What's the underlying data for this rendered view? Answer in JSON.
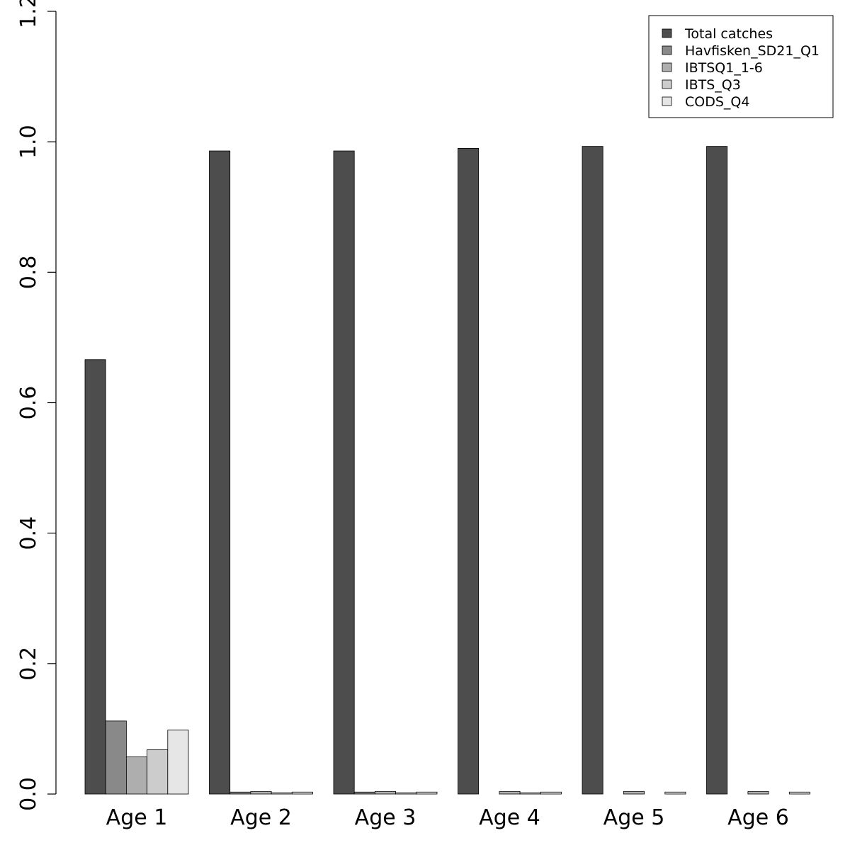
{
  "chart_data": {
    "type": "bar",
    "title": "",
    "xlabel": "",
    "ylabel": "",
    "categories": [
      "Age 1",
      "Age 2",
      "Age 3",
      "Age 4",
      "Age 5",
      "Age 6"
    ],
    "ylim": [
      0,
      1.2
    ],
    "yticks": [
      "0.0",
      "0.2",
      "0.4",
      "0.6",
      "0.8",
      "1.0",
      "1.2"
    ],
    "grid": false,
    "legend_position": "top-right",
    "series": [
      {
        "name": "Total catches",
        "color": "#4d4d4d",
        "values": [
          0.666,
          0.986,
          0.986,
          0.99,
          0.993,
          0.993
        ]
      },
      {
        "name": "Havfisken_SD21_Q1",
        "color": "#898989",
        "values": [
          0.112,
          0.003,
          0.003,
          0.0,
          0.0,
          0.0
        ]
      },
      {
        "name": "IBTSQ1_1-6",
        "color": "#aeaeae",
        "values": [
          0.057,
          0.004,
          0.004,
          0.004,
          0.004,
          0.004
        ]
      },
      {
        "name": "IBTS_Q3",
        "color": "#cccccc",
        "values": [
          0.068,
          0.002,
          0.002,
          0.002,
          0.0,
          0.0
        ]
      },
      {
        "name": "CODS_Q4",
        "color": "#e6e6e6",
        "values": [
          0.098,
          0.003,
          0.003,
          0.003,
          0.003,
          0.003
        ]
      }
    ]
  }
}
